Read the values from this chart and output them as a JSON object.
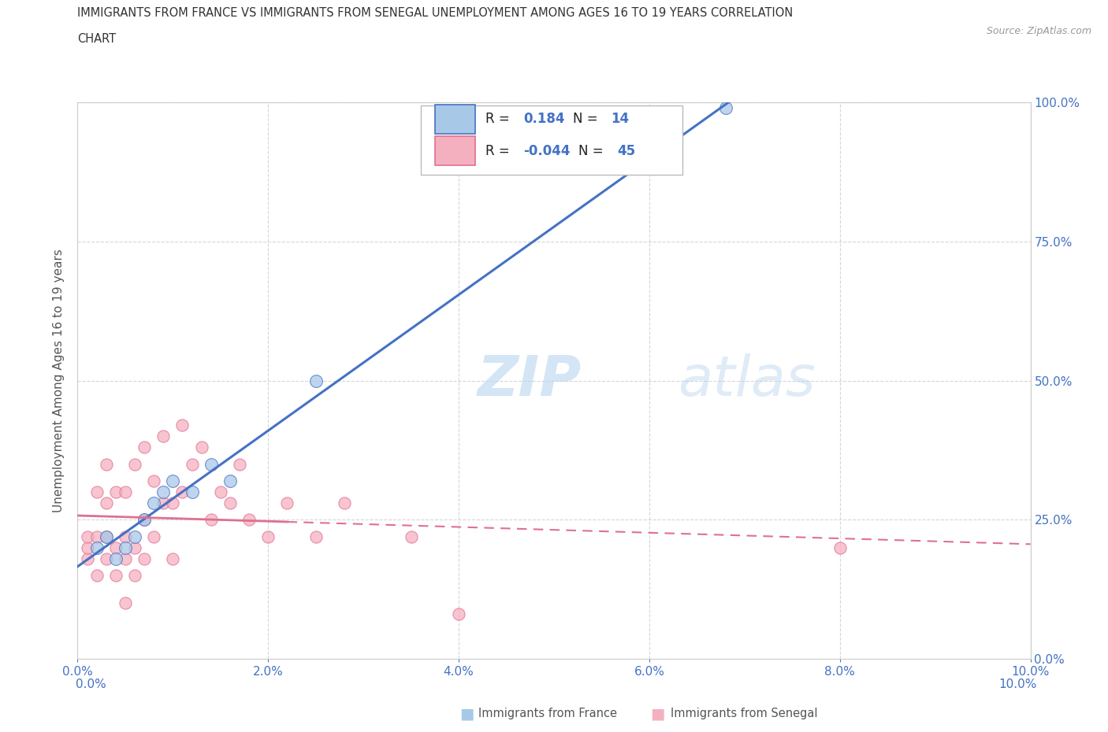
{
  "title_line1": "IMMIGRANTS FROM FRANCE VS IMMIGRANTS FROM SENEGAL UNEMPLOYMENT AMONG AGES 16 TO 19 YEARS CORRELATION",
  "title_line2": "CHART",
  "source": "Source: ZipAtlas.com",
  "ylabel": "Unemployment Among Ages 16 to 19 years",
  "xlim": [
    0.0,
    0.1
  ],
  "ylim": [
    0.0,
    1.0
  ],
  "xticks": [
    0.0,
    0.02,
    0.04,
    0.06,
    0.08,
    0.1
  ],
  "xticklabels": [
    "0.0%",
    "2.0%",
    "4.0%",
    "6.0%",
    "8.0%",
    "10.0%"
  ],
  "yticks": [
    0.0,
    0.25,
    0.5,
    0.75,
    1.0
  ],
  "yticklabels": [
    "0.0%",
    "25.0%",
    "50.0%",
    "75.0%",
    "100.0%"
  ],
  "france_color": "#a8c8e8",
  "senegal_color": "#f5b0c0",
  "france_R": 0.184,
  "france_N": 14,
  "senegal_R": -0.044,
  "senegal_N": 45,
  "france_line_color": "#4472c4",
  "senegal_line_color": "#e07090",
  "watermark_zip": "ZIP",
  "watermark_atlas": "atlas",
  "title_color": "#333333",
  "axis_label_color": "#555555",
  "tick_color": "#4472c4",
  "grid_color": "#cccccc",
  "background_color": "#ffffff",
  "france_scatter_x": [
    0.002,
    0.003,
    0.004,
    0.005,
    0.006,
    0.007,
    0.008,
    0.009,
    0.01,
    0.012,
    0.014,
    0.016,
    0.025,
    0.068
  ],
  "france_scatter_y": [
    0.2,
    0.22,
    0.18,
    0.2,
    0.22,
    0.25,
    0.28,
    0.3,
    0.32,
    0.3,
    0.35,
    0.32,
    0.5,
    0.99
  ],
  "senegal_scatter_x": [
    0.001,
    0.001,
    0.001,
    0.002,
    0.002,
    0.002,
    0.003,
    0.003,
    0.003,
    0.003,
    0.004,
    0.004,
    0.004,
    0.005,
    0.005,
    0.005,
    0.005,
    0.006,
    0.006,
    0.006,
    0.007,
    0.007,
    0.007,
    0.008,
    0.008,
    0.009,
    0.009,
    0.01,
    0.01,
    0.011,
    0.011,
    0.012,
    0.013,
    0.014,
    0.015,
    0.016,
    0.017,
    0.018,
    0.02,
    0.022,
    0.025,
    0.028,
    0.035,
    0.04,
    0.08
  ],
  "senegal_scatter_y": [
    0.18,
    0.2,
    0.22,
    0.15,
    0.22,
    0.3,
    0.18,
    0.22,
    0.28,
    0.35,
    0.15,
    0.2,
    0.3,
    0.1,
    0.18,
    0.22,
    0.3,
    0.15,
    0.2,
    0.35,
    0.18,
    0.25,
    0.38,
    0.22,
    0.32,
    0.28,
    0.4,
    0.18,
    0.28,
    0.3,
    0.42,
    0.35,
    0.38,
    0.25,
    0.3,
    0.28,
    0.35,
    0.25,
    0.22,
    0.28,
    0.22,
    0.28,
    0.22,
    0.08,
    0.2
  ]
}
